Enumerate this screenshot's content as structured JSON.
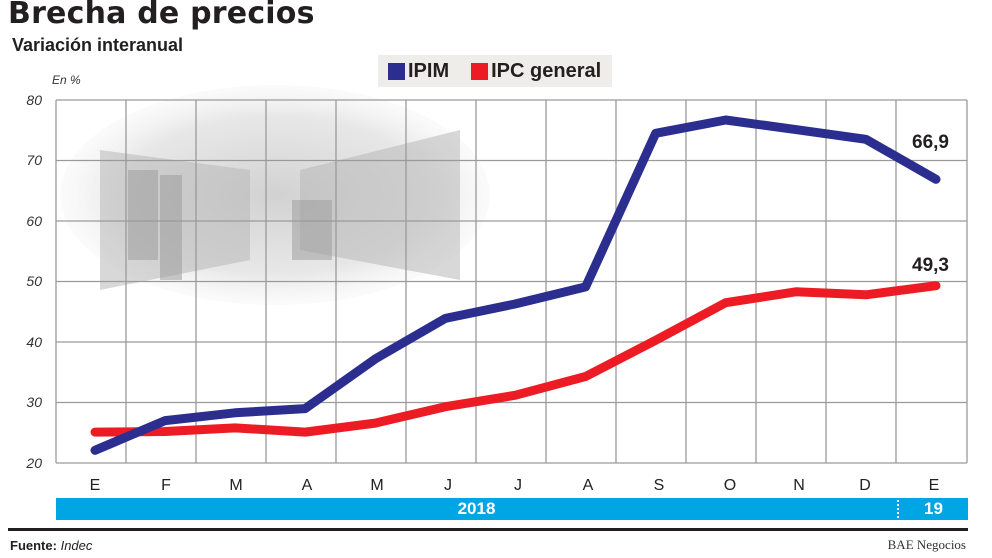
{
  "header": {
    "title": "Brecha de precios",
    "subtitle": "Variación interanual",
    "unit": "En %"
  },
  "legend": {
    "items": [
      {
        "label": "IPIM",
        "color": "#2b2e8f"
      },
      {
        "label": "IPC general",
        "color": "#ed1c24"
      }
    ]
  },
  "axes": {
    "y_ticks": [
      "80",
      "70",
      "60",
      "50",
      "40",
      "30",
      "20"
    ],
    "x_ticks": [
      "E",
      "F",
      "M",
      "A",
      "M",
      "J",
      "J",
      "A",
      "S",
      "O",
      "N",
      "D",
      "E"
    ],
    "years": [
      {
        "label": "2018"
      },
      {
        "label": "19"
      }
    ]
  },
  "end_labels": {
    "ipim": "66,9",
    "ipc": "49,3"
  },
  "footer": {
    "source_label": "Fuente:",
    "source_value": "Indec",
    "credit": "BAE Negocios"
  },
  "colors": {
    "ipim": "#2b2e8f",
    "ipc": "#ed1c24",
    "year_bar": "#00a5e3",
    "grid": "#9a9a9a"
  },
  "chart_data": {
    "type": "line",
    "title": "Brecha de precios",
    "subtitle": "Variación interanual",
    "ylabel": "En %",
    "xlabel": "",
    "ylim": [
      20,
      80
    ],
    "grid": true,
    "legend_position": "top-center",
    "categories": [
      "E 2018",
      "F 2018",
      "M 2018",
      "A 2018",
      "M 2018",
      "J 2018",
      "J 2018",
      "A 2018",
      "S 2018",
      "O 2018",
      "N 2018",
      "D 2018",
      "E 2019"
    ],
    "x_tick_labels": [
      "E",
      "F",
      "M",
      "A",
      "M",
      "J",
      "J",
      "A",
      "S",
      "O",
      "N",
      "D",
      "E"
    ],
    "series": [
      {
        "name": "IPIM",
        "color": "#2b2e8f",
        "values": [
          22.1,
          27.0,
          28.3,
          29.0,
          37.2,
          43.9,
          46.3,
          49.1,
          74.5,
          76.7,
          75.1,
          73.5,
          66.9
        ]
      },
      {
        "name": "IPC general",
        "color": "#ed1c24",
        "values": [
          25.1,
          25.2,
          25.8,
          25.1,
          26.6,
          29.3,
          31.2,
          34.3,
          40.3,
          46.5,
          48.3,
          47.8,
          49.3
        ]
      }
    ],
    "annotations": [
      {
        "series": "IPIM",
        "x": "E 2019",
        "text": "66,9"
      },
      {
        "series": "IPC general",
        "x": "E 2019",
        "text": "49,3"
      }
    ],
    "year_band": [
      {
        "label": "2018",
        "span": [
          "E",
          "D"
        ]
      },
      {
        "label": "19",
        "span": [
          "E",
          "E"
        ]
      }
    ],
    "source": "Fuente: Indec",
    "credit": "BAE Negocios"
  }
}
